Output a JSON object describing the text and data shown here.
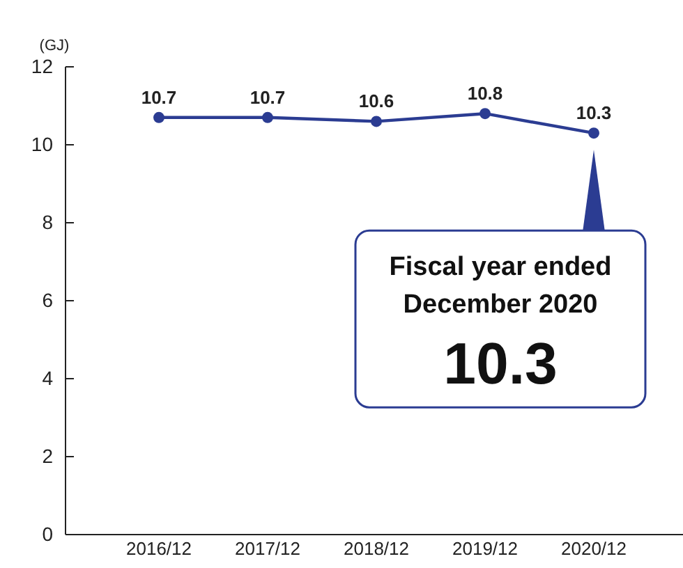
{
  "chart_data": {
    "type": "line",
    "ylabel": "(GJ)",
    "categories": [
      "2016/12",
      "2017/12",
      "2018/12",
      "2019/12",
      "2020/12"
    ],
    "series": [
      {
        "color": "#2b3c92",
        "values": [
          10.7,
          10.7,
          10.6,
          10.8,
          10.3
        ]
      }
    ],
    "ylim": [
      0,
      12
    ],
    "yticks": [
      0,
      2,
      4,
      6,
      8,
      10,
      12
    ],
    "grid": false,
    "marker": "circle",
    "line_style": "solid",
    "data_labels": true,
    "annotations": [
      "Fiscal year ended December 2020",
      "10.3"
    ]
  }
}
